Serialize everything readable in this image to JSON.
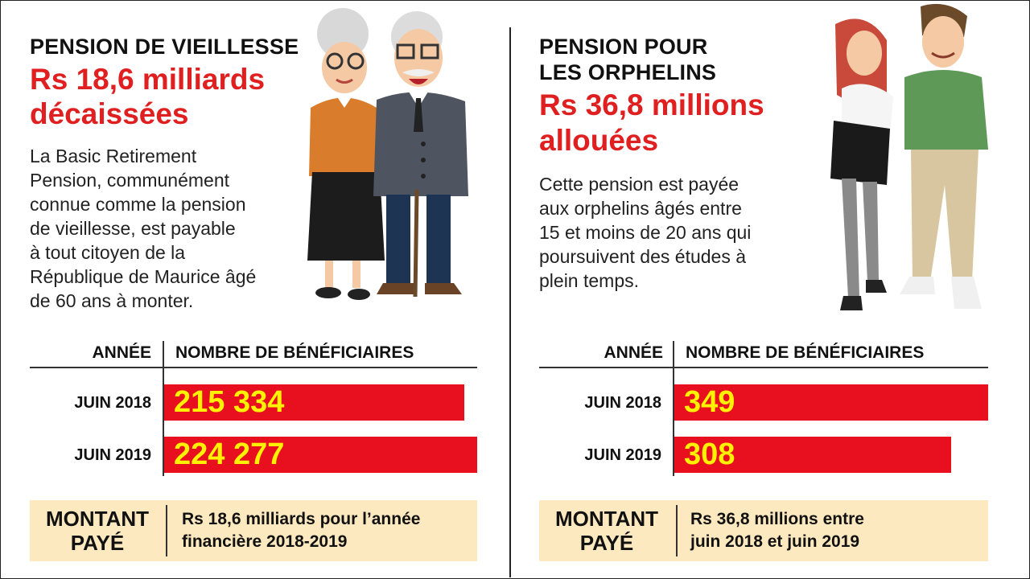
{
  "left": {
    "title": "PENSION DE VIEILLESSE",
    "headline_line1": "Rs 18,6 milliards",
    "headline_line2": "décaissées",
    "description": [
      "La Basic Retirement",
      "Pension, communément",
      "connue comme la pension",
      "de vieillesse, est payable",
      "à tout citoyen de la",
      "République de Maurice âgé",
      "de 60 ans à monter."
    ],
    "col_year": "ANNÉE",
    "col_count": "NOMBRE DE BÉNÉFICIAIRES",
    "paid_label_line1": "MONTANT",
    "paid_label_line2": "PAYÉ",
    "paid_text_line1": "Rs 18,6 milliards pour l’année",
    "paid_text_line2": "financière 2018-2019",
    "illustration": "elderly-couple-illustration"
  },
  "right": {
    "title_line1": "PENSION POUR",
    "title_line2": "LES ORPHELINS",
    "headline_line1": "Rs 36,8 millions",
    "headline_line2": "allouées",
    "description": [
      "Cette pension est payée",
      "aux orphelins âgés entre",
      "15 et moins de 20 ans qui",
      "poursuivent des études à",
      "plein temps."
    ],
    "col_year": "ANNÉE",
    "col_count": "NOMBRE DE BÉNÉFICIAIRES",
    "paid_label_line1": "MONTANT",
    "paid_label_line2": "PAYÉ",
    "paid_text_line1": "Rs 36,8 millions entre",
    "paid_text_line2": "juin 2018 et juin 2019",
    "illustration": "young-couple-illustration"
  },
  "colors": {
    "bar": "#e8101e",
    "bar_value": "#fff200",
    "headline": "#e02020",
    "paid_box": "#fde9bf"
  },
  "chart_data": [
    {
      "type": "bar",
      "orientation": "horizontal",
      "categories": [
        "JUIN 2018",
        "JUIN 2019"
      ],
      "values": [
        215334,
        224277
      ],
      "value_labels": [
        "215 334",
        "224 277"
      ],
      "xlim": [
        0,
        224277
      ]
    },
    {
      "type": "bar",
      "orientation": "horizontal",
      "categories": [
        "JUIN 2018",
        "JUIN 2019"
      ],
      "values": [
        349,
        308
      ],
      "value_labels": [
        "349",
        "308"
      ],
      "xlim": [
        0,
        349
      ]
    }
  ]
}
